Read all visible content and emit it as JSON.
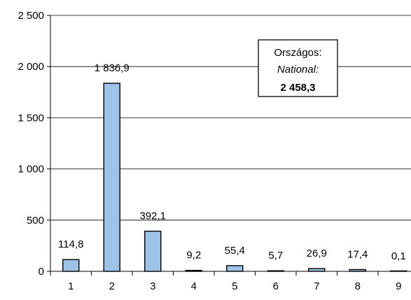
{
  "chart_data": {
    "type": "bar",
    "categories": [
      "1",
      "2",
      "3",
      "4",
      "5",
      "6",
      "7",
      "8",
      "9"
    ],
    "values": [
      114.8,
      1836.9,
      392.1,
      9.2,
      55.4,
      5.7,
      26.9,
      17.4,
      0.1
    ],
    "value_labels": [
      "114,8",
      "1 836,9",
      "392,1",
      "9,2",
      "55,4",
      "5,7",
      "26,9",
      "17,4",
      "0,1"
    ],
    "ylim": [
      0,
      2500
    ],
    "yticks": [
      0,
      500,
      1000,
      1500,
      2000,
      2500
    ],
    "ytick_labels": [
      "0",
      "500",
      "1 000",
      "1 500",
      "2 000",
      "2 500"
    ],
    "grid": true,
    "bar_color": "#9DC3E6",
    "annotation": {
      "line1": "Országos:",
      "line2": "National:",
      "line3": "2 458,3"
    }
  }
}
